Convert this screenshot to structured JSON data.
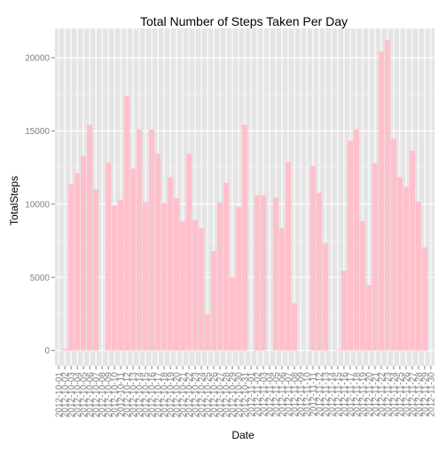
{
  "chart_data": {
    "type": "bar",
    "title": "Total Number of Steps Taken Per Day",
    "xlabel": "Date",
    "ylabel": "TotalSteps",
    "ylim": [
      -1050,
      22000
    ],
    "yticks": [
      0,
      5000,
      10000,
      15000,
      20000
    ],
    "ytick_labels": [
      "0",
      "5000",
      "10000",
      "15000",
      "20000"
    ],
    "grid": true,
    "bar_color": "#FFC0CB",
    "panel_background": "#E5E5E5",
    "grid_color": "#FFFFFF",
    "categories": [
      "2012-10-01",
      "2012-10-02",
      "2012-10-03",
      "2012-10-04",
      "2012-10-05",
      "2012-10-06",
      "2012-10-07",
      "2012-10-08",
      "2012-10-09",
      "2012-10-10",
      "2012-10-11",
      "2012-10-12",
      "2012-10-13",
      "2012-10-14",
      "2012-10-15",
      "2012-10-16",
      "2012-10-17",
      "2012-10-18",
      "2012-10-19",
      "2012-10-20",
      "2012-10-21",
      "2012-10-22",
      "2012-10-23",
      "2012-10-24",
      "2012-10-25",
      "2012-10-26",
      "2012-10-27",
      "2012-10-28",
      "2012-10-29",
      "2012-10-30",
      "2012-10-31",
      "2012-11-01",
      "2012-11-02",
      "2012-11-03",
      "2012-11-04",
      "2012-11-05",
      "2012-11-06",
      "2012-11-07",
      "2012-11-08",
      "2012-11-09",
      "2012-11-10",
      "2012-11-11",
      "2012-11-12",
      "2012-11-13",
      "2012-11-14",
      "2012-11-15",
      "2012-11-16",
      "2012-11-17",
      "2012-11-18",
      "2012-11-19",
      "2012-11-20",
      "2012-11-21",
      "2012-11-22",
      "2012-11-23",
      "2012-11-24",
      "2012-11-25",
      "2012-11-26",
      "2012-11-27",
      "2012-11-28",
      "2012-11-29",
      "2012-11-30"
    ],
    "values": [
      0,
      126,
      11352,
      12116,
      13294,
      15420,
      11015,
      0,
      12811,
      9900,
      10304,
      17382,
      12426,
      15098,
      10139,
      15084,
      13452,
      10056,
      11829,
      10395,
      8821,
      13460,
      8918,
      8355,
      2492,
      6778,
      10119,
      11458,
      5018,
      9819,
      15414,
      0,
      10600,
      10571,
      0,
      10439,
      8334,
      12883,
      3219,
      0,
      0,
      12608,
      10765,
      7336,
      0,
      41,
      5441,
      14339,
      15110,
      8841,
      4472,
      12787,
      20427,
      21194,
      14478,
      11834,
      11162,
      13646,
      10183,
      7047,
      0
    ]
  }
}
